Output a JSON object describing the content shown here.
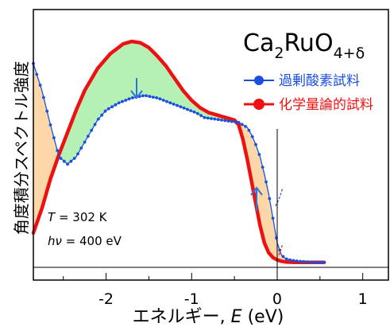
{
  "chart_data": {
    "type": "line",
    "title": "Ca2RuO4+δ",
    "title_parts": {
      "base": "Ca",
      "sub1": "2",
      "mid": "RuO",
      "sub2": "4+δ"
    },
    "xlabel": {
      "prefix": "エネルギー, ",
      "var": "E",
      "unit": " (eV)"
    },
    "ylabel": "角度積分スペクトル強度",
    "xlim": [
      -2.85,
      1.3
    ],
    "ylim": [
      0,
      1.05
    ],
    "xticks": [
      -2,
      -1,
      0,
      1
    ],
    "xtick_labels": [
      "-2",
      "-1",
      "0",
      "1"
    ],
    "grid": false,
    "legend_position": "top-right",
    "annotations": {
      "temperature": {
        "var": "T",
        "text": " = 302 K"
      },
      "photon": {
        "var": "hν",
        "text": " = 400 eV"
      }
    },
    "colors": {
      "series1": "#1a4fe0",
      "series2": "#ee1111",
      "fill_green": "#b5f0b5",
      "fill_orange": "#fcd8a8",
      "arrow": "#2f73d9"
    },
    "series": [
      {
        "name": "過剰酸素試料",
        "color": "#1a4fe0",
        "marker": "dot",
        "x": [
          -2.85,
          -2.75,
          -2.65,
          -2.55,
          -2.45,
          -2.35,
          -2.25,
          -2.1,
          -2.0,
          -1.85,
          -1.7,
          -1.55,
          -1.4,
          -1.25,
          -1.1,
          -0.95,
          -0.85,
          -0.75,
          -0.65,
          -0.55,
          -0.45,
          -0.35,
          -0.3,
          -0.25,
          -0.2,
          -0.15,
          -0.1,
          -0.05,
          0.0,
          0.05,
          0.1,
          0.15,
          0.25,
          0.35,
          0.45,
          0.55
        ],
        "y": [
          0.83,
          0.72,
          0.58,
          0.45,
          0.42,
          0.45,
          0.51,
          0.6,
          0.64,
          0.67,
          0.69,
          0.7,
          0.69,
          0.67,
          0.65,
          0.63,
          0.61,
          0.605,
          0.6,
          0.595,
          0.59,
          0.57,
          0.54,
          0.5,
          0.45,
          0.38,
          0.3,
          0.2,
          0.1,
          0.05,
          0.035,
          0.03,
          0.025,
          0.022,
          0.02,
          0.02
        ]
      },
      {
        "name": "化学量論的試料",
        "color": "#ee1111",
        "marker": "none",
        "x": [
          -2.85,
          -2.75,
          -2.65,
          -2.55,
          -2.45,
          -2.35,
          -2.25,
          -2.1,
          -1.95,
          -1.8,
          -1.7,
          -1.6,
          -1.5,
          -1.4,
          -1.3,
          -1.2,
          -1.1,
          -1.0,
          -0.9,
          -0.8,
          -0.7,
          -0.6,
          -0.5,
          -0.45,
          -0.4,
          -0.35,
          -0.3,
          -0.25,
          -0.2,
          -0.15,
          -0.1,
          -0.05,
          0.0,
          0.05,
          0.1,
          0.2,
          0.3,
          0.4,
          0.5,
          0.55
        ],
        "y": [
          0.14,
          0.24,
          0.36,
          0.46,
          0.55,
          0.64,
          0.72,
          0.81,
          0.87,
          0.91,
          0.92,
          0.915,
          0.895,
          0.86,
          0.82,
          0.77,
          0.72,
          0.68,
          0.65,
          0.63,
          0.62,
          0.61,
          0.6,
          0.58,
          0.52,
          0.44,
          0.35,
          0.26,
          0.17,
          0.1,
          0.06,
          0.04,
          0.03,
          0.025,
          0.022,
          0.02,
          0.02,
          0.02,
          0.02,
          0.02
        ]
      }
    ]
  }
}
